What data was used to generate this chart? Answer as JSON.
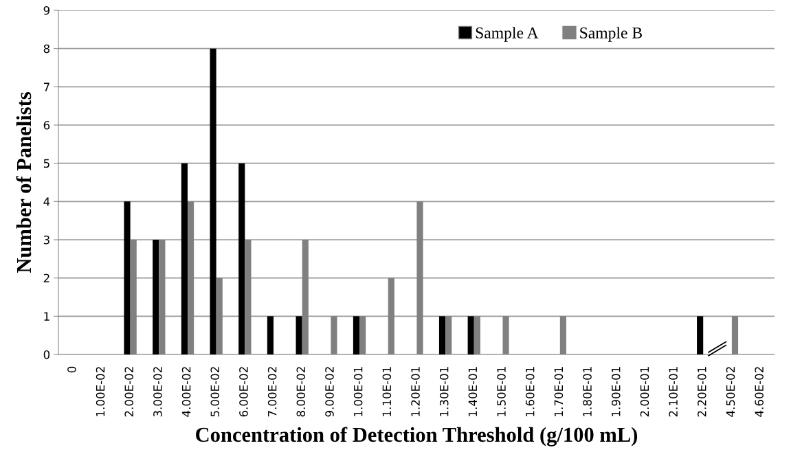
{
  "chart_data": {
    "type": "bar",
    "xlabel": "Concentration of Detection Threshold (g/100 mL)",
    "ylabel": "Number of Panelists",
    "categories": [
      "0",
      "1.00E-02",
      "2.00E-02",
      "3.00E-02",
      "4.00E-02",
      "5.00E-02",
      "6.00E-02",
      "7.00E-02",
      "8.00E-02",
      "9.00E-02",
      "1.00E-01",
      "1.10E-01",
      "1.20E-01",
      "1.30E-01",
      "1.40E-01",
      "1.50E-01",
      "1.60E-01",
      "1.70E-01",
      "1.80E-01",
      "1.90E-01",
      "2.00E-01",
      "2.10E-01",
      "2.20E-01",
      "4.50E-02",
      "4.60E-02"
    ],
    "series": [
      {
        "name": "Sample A",
        "color": "#000000",
        "values": [
          0,
          0,
          4,
          3,
          5,
          8,
          5,
          1,
          1,
          0,
          1,
          0,
          0,
          1,
          1,
          0,
          0,
          0,
          0,
          0,
          0,
          0,
          1,
          0,
          0
        ]
      },
      {
        "name": "Sample B",
        "color": "#808080",
        "values": [
          0,
          0,
          3,
          3,
          4,
          2,
          3,
          0,
          3,
          1,
          1,
          2,
          4,
          1,
          1,
          1,
          0,
          1,
          0,
          0,
          0,
          0,
          0,
          1,
          0
        ]
      }
    ],
    "ylim": [
      0,
      9
    ],
    "yticks": [
      0,
      1,
      2,
      3,
      4,
      5,
      6,
      7,
      8,
      9
    ],
    "grid": "y",
    "legend": "top right"
  }
}
